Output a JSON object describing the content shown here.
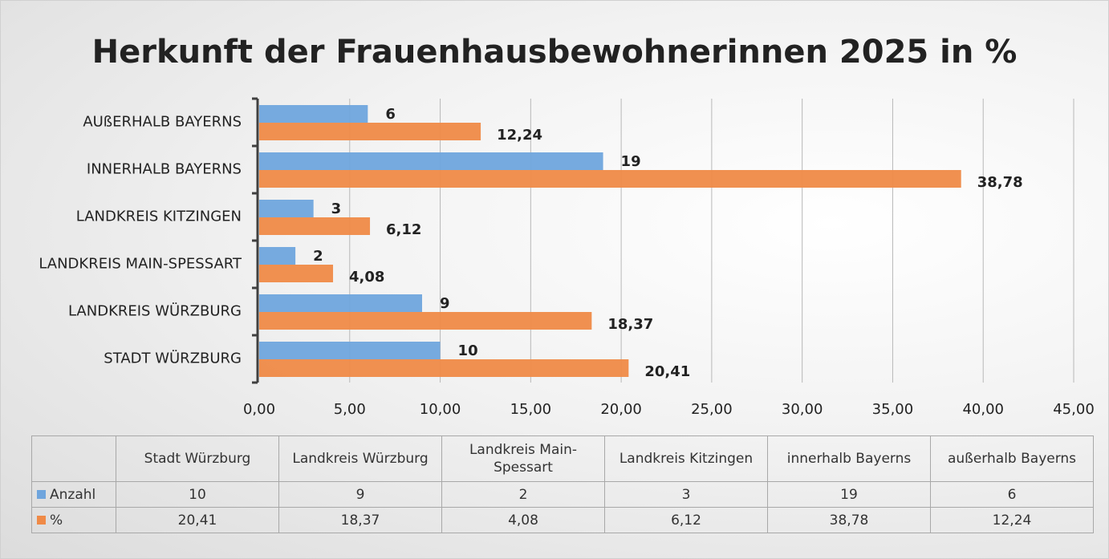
{
  "chart_data": {
    "type": "barh",
    "title": "Herkunft der Frauenhausbewohnerinnen 2025 in %",
    "categories": [
      "STADT WÜRZBURG",
      "LANDKREIS WÜRZBURG",
      "LANDKREIS MAIN-SPESSART",
      "LANDKREIS KITZINGEN",
      "INNERHALB BAYERNS",
      "AUßERHALB BAYERNS"
    ],
    "series": [
      {
        "name": "Anzahl",
        "color": "#6fa5dd",
        "values": [
          10,
          9,
          2,
          3,
          19,
          6
        ]
      },
      {
        "name": "%",
        "color": "#ef8a47",
        "values": [
          20.41,
          18.37,
          4.08,
          6.12,
          38.78,
          12.24
        ],
        "value_labels": [
          "20,41",
          "18,37",
          "4,08",
          "6,12",
          "38,78",
          "12,24"
        ]
      }
    ],
    "xlim": [
      0,
      45
    ],
    "xticks": [
      {
        "value": 0,
        "label": "0,00"
      },
      {
        "value": 5,
        "label": "5,00"
      },
      {
        "value": 10,
        "label": "10,00"
      },
      {
        "value": 15,
        "label": "15,00"
      },
      {
        "value": 20,
        "label": "20,00"
      },
      {
        "value": 25,
        "label": "25,00"
      },
      {
        "value": 30,
        "label": "30,00"
      },
      {
        "value": 35,
        "label": "35,00"
      },
      {
        "value": 40,
        "label": "40,00"
      },
      {
        "value": 45,
        "label": "45,00"
      }
    ],
    "grid": true,
    "table_columns": [
      "Stadt Würzburg",
      "Landkreis Würzburg",
      "Landkreis Main-Spessart",
      "Landkreis Kitzingen",
      "innerhalb Bayerns",
      "außerhalb Bayerns"
    ]
  }
}
